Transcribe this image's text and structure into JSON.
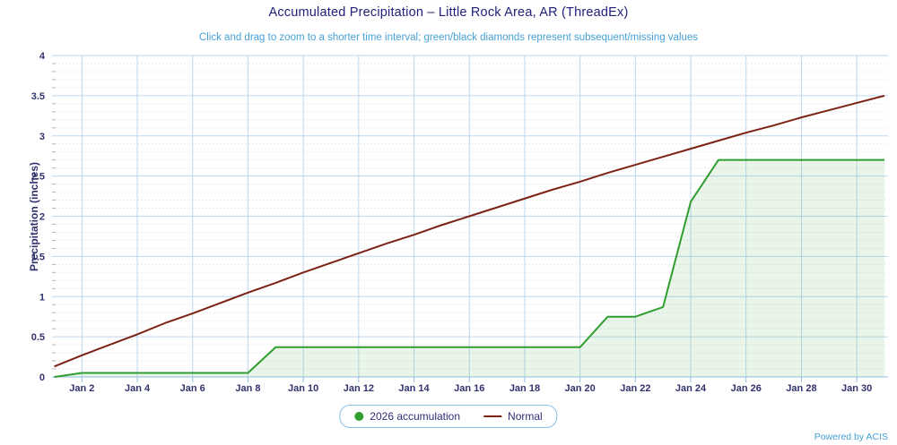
{
  "header": {
    "title": "Accumulated Precipitation – Little Rock Area, AR (ThreadEx)",
    "subtitle": "Click and drag to zoom to a shorter time interval; green/black diamonds represent subsequent/missing values"
  },
  "footer": {
    "powered_by": "Powered by ACIS"
  },
  "legend": {
    "position": "bottom-center",
    "items": [
      {
        "label": "2026 accumulation",
        "marker": "circle",
        "color": "#2f9e2f"
      },
      {
        "label": "Normal",
        "marker": "line",
        "color": "#7c2215"
      }
    ]
  },
  "colors": {
    "title_text": "#21217a",
    "subtitle_text": "#46a0d6",
    "axis_text": "#32326e",
    "major_grid": "#bdd7ed",
    "minor_grid": "#d6d6de",
    "axis_line": "#8fbfdf",
    "accumulation_green": "#2f9e2f",
    "accumulation_fill": "rgba(47,158,47,0.10)",
    "normal_dark_red": "#7c2215",
    "legend_border": "#86c0e4"
  },
  "chart_data": {
    "type": "area",
    "title": "Accumulated Precipitation – Little Rock Area, AR (ThreadEx)",
    "subtitle": "Click and drag to zoom to a shorter time interval; green/black diamonds represent subsequent/missing values",
    "xlabel": "",
    "ylabel": "Precipitation (inches)",
    "ylim": [
      0,
      4
    ],
    "grid": {
      "major": true,
      "minor_step_y": 0.1
    },
    "legend_position": "bottom-center",
    "x_unit": "day of January",
    "x": [
      1,
      2,
      3,
      4,
      5,
      6,
      7,
      8,
      9,
      10,
      11,
      12,
      13,
      14,
      15,
      16,
      17,
      18,
      19,
      20,
      21,
      22,
      23,
      24,
      25,
      26,
      27,
      28,
      29,
      30,
      31
    ],
    "x_ticks": [
      {
        "day": 2,
        "label": "Jan 2"
      },
      {
        "day": 4,
        "label": "Jan 4"
      },
      {
        "day": 6,
        "label": "Jan 6"
      },
      {
        "day": 8,
        "label": "Jan 8"
      },
      {
        "day": 10,
        "label": "Jan 10"
      },
      {
        "day": 12,
        "label": "Jan 12"
      },
      {
        "day": 14,
        "label": "Jan 14"
      },
      {
        "day": 16,
        "label": "Jan 16"
      },
      {
        "day": 18,
        "label": "Jan 18"
      },
      {
        "day": 20,
        "label": "Jan 20"
      },
      {
        "day": 22,
        "label": "Jan 22"
      },
      {
        "day": 24,
        "label": "Jan 24"
      },
      {
        "day": 26,
        "label": "Jan 26"
      },
      {
        "day": 28,
        "label": "Jan 28"
      },
      {
        "day": 30,
        "label": "Jan 30"
      }
    ],
    "y_ticks": [
      {
        "v": 0,
        "label": "0"
      },
      {
        "v": 0.5,
        "label": "0.5"
      },
      {
        "v": 1,
        "label": "1"
      },
      {
        "v": 1.5,
        "label": "1.5"
      },
      {
        "v": 2,
        "label": "2"
      },
      {
        "v": 2.5,
        "label": "2.5"
      },
      {
        "v": 3,
        "label": "3"
      },
      {
        "v": 3.5,
        "label": "3.5"
      },
      {
        "v": 4,
        "label": "4"
      }
    ],
    "series": [
      {
        "name": "2026 accumulation",
        "type": "area",
        "color": "#2f9e2f",
        "fill": "rgba(47,158,47,0.10)",
        "values": [
          0.0,
          0.05,
          0.05,
          0.05,
          0.05,
          0.05,
          0.05,
          0.05,
          0.37,
          0.37,
          0.37,
          0.37,
          0.37,
          0.37,
          0.37,
          0.37,
          0.37,
          0.37,
          0.37,
          0.37,
          0.75,
          0.75,
          0.87,
          2.18,
          2.7,
          2.7,
          2.7,
          2.7,
          2.7,
          2.7,
          2.7
        ]
      },
      {
        "name": "Normal",
        "type": "line",
        "color": "#7c2215",
        "values": [
          0.13,
          0.27,
          0.4,
          0.53,
          0.67,
          0.79,
          0.92,
          1.05,
          1.17,
          1.3,
          1.42,
          1.54,
          1.66,
          1.77,
          1.89,
          2.0,
          2.11,
          2.22,
          2.33,
          2.43,
          2.54,
          2.64,
          2.74,
          2.84,
          2.94,
          3.04,
          3.13,
          3.23,
          3.32,
          3.41,
          3.5
        ]
      }
    ]
  }
}
